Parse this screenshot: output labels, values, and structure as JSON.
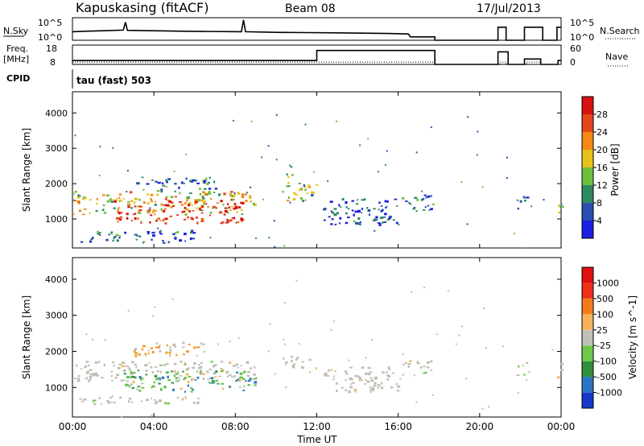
{
  "header": {
    "station": "Kapuskasing (fitACF)",
    "beam": "Beam 08",
    "date": "17/Jul/2013"
  },
  "status_panels": {
    "nsky_label": "N.Sky",
    "nsky_ticks": [
      "10^5",
      "10^0"
    ],
    "nsearch_label": "N.Search",
    "nsearch_ticks": [
      "10^5",
      "10^0"
    ],
    "freq_label": "Freq.",
    "freq_unit": "[MHz]",
    "freq_ticks": [
      "18",
      "8"
    ],
    "nave_label": "Nave",
    "nave_ticks": [
      "60",
      "0"
    ],
    "cpid_label": "CPID",
    "cpid_value": "tau (fast) 503",
    "nsky_trace": [
      [
        0,
        0.62
      ],
      [
        0.6,
        0.6
      ],
      [
        1.5,
        0.58
      ],
      [
        2.5,
        0.55
      ],
      [
        2.6,
        0.2
      ],
      [
        2.7,
        0.56
      ],
      [
        4,
        0.58
      ],
      [
        5.5,
        0.6
      ],
      [
        8.3,
        0.62
      ],
      [
        8.4,
        0.1
      ],
      [
        8.5,
        0.62
      ],
      [
        10,
        0.65
      ],
      [
        13,
        0.67
      ],
      [
        15.5,
        0.7
      ],
      [
        16.5,
        0.72
      ],
      [
        16.6,
        0.85
      ],
      [
        17.8,
        0.85
      ],
      [
        17.8,
        1.0
      ],
      [
        20.9,
        1.0
      ],
      [
        20.9,
        0.42
      ],
      [
        21.3,
        0.42
      ],
      [
        21.3,
        1.0
      ],
      [
        22.2,
        1.0
      ],
      [
        22.2,
        0.42
      ],
      [
        23.1,
        0.42
      ],
      [
        23.1,
        1.0
      ],
      [
        23.8,
        1.0
      ],
      [
        23.8,
        0.42
      ],
      [
        24,
        0.42
      ]
    ],
    "freq_trace": [
      [
        0,
        0.8
      ],
      [
        12,
        0.8
      ],
      [
        12,
        0.28
      ],
      [
        17.8,
        0.28
      ],
      [
        17.8,
        1.0
      ],
      [
        20.9,
        1.0
      ],
      [
        20.9,
        0.35
      ],
      [
        21.4,
        0.35
      ],
      [
        21.4,
        1.0
      ],
      [
        22.2,
        1.0
      ],
      [
        22.2,
        0.72
      ],
      [
        23.0,
        0.72
      ],
      [
        23.0,
        1.0
      ],
      [
        23.85,
        1.0
      ],
      [
        23.85,
        0.8
      ],
      [
        24,
        0.8
      ]
    ],
    "nave_trace": [
      [
        0,
        0.88
      ],
      [
        12,
        0.88
      ],
      [
        17.8,
        0.88
      ],
      [
        17.8,
        1.0
      ],
      [
        21,
        1.0
      ],
      [
        21,
        0.88
      ],
      [
        21.3,
        0.88
      ],
      [
        21.3,
        1.0
      ],
      [
        22.3,
        1.0
      ],
      [
        22.3,
        0.88
      ],
      [
        23.0,
        0.88
      ],
      [
        23.0,
        1.0
      ],
      [
        24,
        1.0
      ]
    ]
  },
  "chart_data": [
    {
      "type": "heatmap",
      "title": "Power [dB]",
      "xlabel": "Time UT",
      "ylabel": "Slant Range [km]",
      "xlim": [
        0,
        24
      ],
      "ylim": [
        180,
        4600
      ],
      "x_ticks": [
        "00:00",
        "04:00",
        "08:00",
        "12:00",
        "16:00",
        "20:00",
        "00:00"
      ],
      "x_tick_values": [
        0,
        4,
        8,
        12,
        16,
        20,
        24
      ],
      "y_ticks": [
        1000,
        2000,
        3000,
        4000
      ],
      "colorbar_label": "Power [dB]",
      "colorbar_ticks": [
        4,
        8,
        12,
        16,
        20,
        24,
        28
      ],
      "colorbar_colors": [
        "#1a1fe0",
        "#2a4fb0",
        "#2e8a5f",
        "#6fbf3f",
        "#e6c21a",
        "#f38a14",
        "#e5461b",
        "#d81010"
      ],
      "regions": [
        {
          "t0": 0.0,
          "t1": 9.0,
          "r0": 1150,
          "r1": 1800,
          "level": 0.55
        },
        {
          "t0": 2.0,
          "t1": 8.5,
          "r0": 900,
          "r1": 1550,
          "level": 0.85
        },
        {
          "t0": 0.3,
          "t1": 6.0,
          "r0": 350,
          "r1": 700,
          "level": 0.25
        },
        {
          "t0": 10.3,
          "t1": 12.0,
          "r0": 1500,
          "r1": 2050,
          "level": 0.4
        },
        {
          "t0": 12.3,
          "t1": 16.0,
          "r0": 850,
          "r1": 1600,
          "level": 0.15
        },
        {
          "t0": 16.1,
          "t1": 17.7,
          "r0": 1200,
          "r1": 1700,
          "level": 0.25
        },
        {
          "t0": 21.8,
          "t1": 22.4,
          "r0": 1300,
          "r1": 1750,
          "level": 0.25
        },
        {
          "t0": 23.8,
          "t1": 24.0,
          "r0": 1050,
          "r1": 1750,
          "level": 0.5
        },
        {
          "t0": 3.0,
          "t1": 7.0,
          "r0": 1800,
          "r1": 2200,
          "level": 0.2
        },
        {
          "t0": 10.5,
          "t1": 11.0,
          "r0": 2200,
          "r1": 2500,
          "level": 0.3
        }
      ]
    },
    {
      "type": "heatmap",
      "title": "Velocity [m s^-1]",
      "xlabel": "Time UT",
      "ylabel": "Slant Range [km]",
      "xlim": [
        0,
        24
      ],
      "ylim": [
        180,
        4600
      ],
      "x_ticks": [
        "00:00",
        "04:00",
        "08:00",
        "12:00",
        "16:00",
        "20:00",
        "00:00"
      ],
      "x_tick_values": [
        0,
        4,
        8,
        12,
        16,
        20,
        24
      ],
      "y_ticks": [
        1000,
        2000,
        3000,
        4000
      ],
      "colorbar_label": "Velocity [m s^-1]",
      "colorbar_ticks": [
        "1000",
        "500",
        "100",
        "25",
        "-25",
        "-100",
        "-500",
        "-1000"
      ],
      "colorbar_colors": [
        "#1838c8",
        "#2c74c4",
        "#2f8f3a",
        "#6cc94a",
        "#c0c0b8",
        "#f6b25a",
        "#f37c1a",
        "#ee3018",
        "#e01010"
      ],
      "regions": [
        {
          "t0": 0.0,
          "t1": 9.0,
          "r0": 1200,
          "r1": 1750,
          "level": "gray"
        },
        {
          "t0": 2.5,
          "t1": 9.0,
          "r0": 900,
          "r1": 1500,
          "level": "green"
        },
        {
          "t0": 0.3,
          "t1": 6.5,
          "r0": 550,
          "r1": 750,
          "level": "gray"
        },
        {
          "t0": 10.3,
          "t1": 12.0,
          "r0": 1550,
          "r1": 1900,
          "level": "gray"
        },
        {
          "t0": 12.3,
          "t1": 16.0,
          "r0": 900,
          "r1": 1600,
          "level": "gray"
        },
        {
          "t0": 16.1,
          "t1": 17.7,
          "r0": 1350,
          "r1": 1750,
          "level": "gray"
        },
        {
          "t0": 21.8,
          "t1": 22.4,
          "r0": 1350,
          "r1": 1750,
          "level": "gray"
        },
        {
          "t0": 23.8,
          "t1": 24.0,
          "r0": 1150,
          "r1": 1700,
          "level": "gray"
        },
        {
          "t0": 3.0,
          "t1": 6.5,
          "r0": 1900,
          "r1": 2300,
          "level": "orange"
        }
      ]
    }
  ]
}
